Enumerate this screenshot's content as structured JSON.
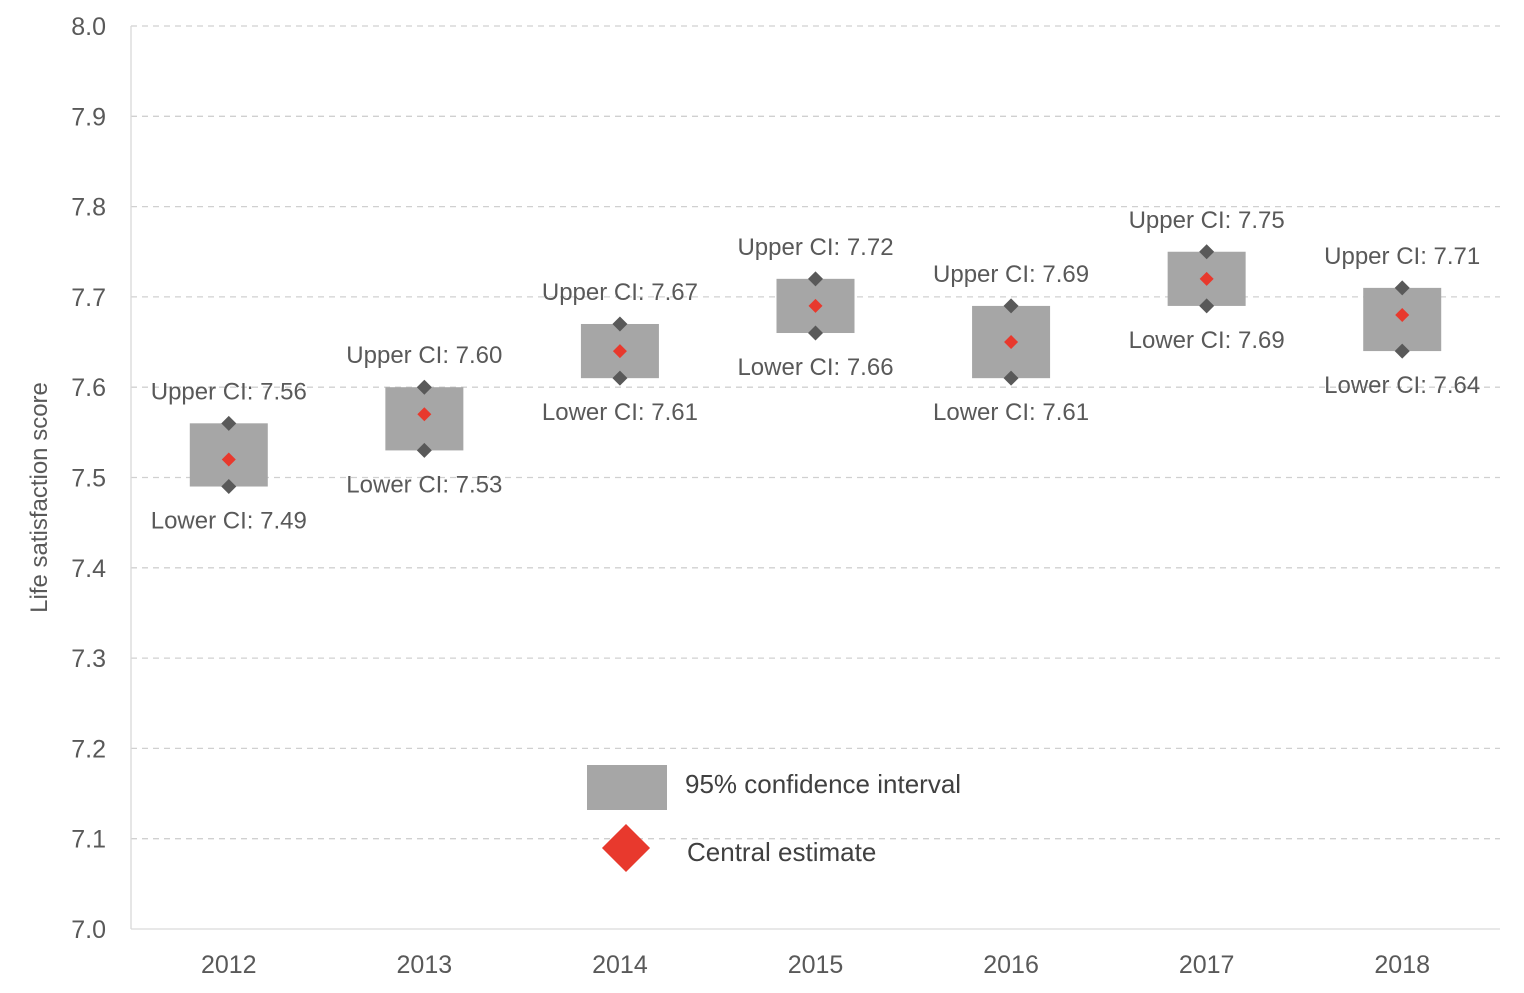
{
  "chart_data": {
    "type": "range",
    "ylabel": "Life satisfaction score",
    "ylim": [
      7.0,
      8.0
    ],
    "ytick_step": 0.1,
    "grid": "horizontal-dashed",
    "categories": [
      "2012",
      "2013",
      "2014",
      "2015",
      "2016",
      "2017",
      "2018"
    ],
    "series": [
      {
        "name": "95% confidence interval",
        "lower": [
          7.49,
          7.53,
          7.61,
          7.66,
          7.61,
          7.69,
          7.64
        ],
        "upper": [
          7.56,
          7.6,
          7.67,
          7.72,
          7.69,
          7.75,
          7.71
        ],
        "color": "#a6a6a6"
      },
      {
        "name": "Central estimate",
        "values": [
          7.52,
          7.57,
          7.64,
          7.69,
          7.65,
          7.72,
          7.68
        ],
        "color": "#e8392d"
      }
    ],
    "upper_labels": [
      "Upper CI: 7.56",
      "Upper CI: 7.60",
      "Upper CI: 7.67",
      "Upper CI: 7.72",
      "Upper CI: 7.69",
      "Upper CI: 7.75",
      "Upper CI: 7.71"
    ],
    "lower_labels": [
      "Lower CI: 7.49",
      "Lower CI: 7.53",
      "Lower CI: 7.61",
      "Lower CI: 7.66",
      "Lower CI: 7.61",
      "Lower CI: 7.69",
      "Lower CI: 7.64"
    ],
    "bound_marker_color": "#595959",
    "legend": {
      "position": "bottom-center",
      "items": [
        "95% confidence interval",
        "Central estimate"
      ]
    }
  }
}
